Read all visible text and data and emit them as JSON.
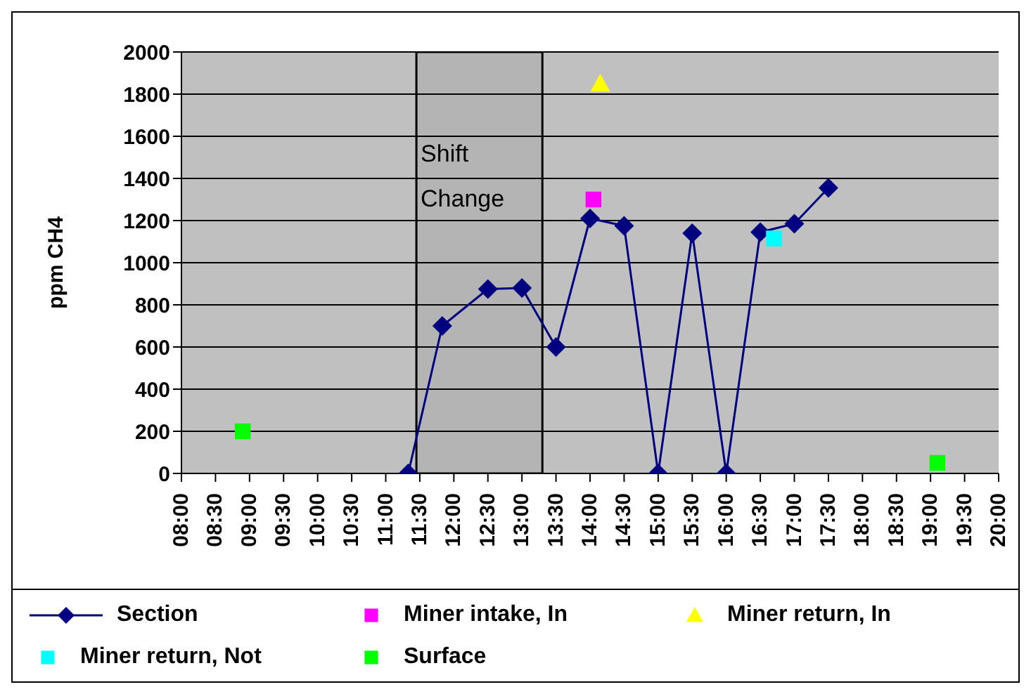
{
  "chart_data": {
    "type": "line",
    "ylabel": "ppm CH4",
    "xlim": [
      8,
      20
    ],
    "ylim": [
      0,
      2000
    ],
    "yticks": [
      0,
      200,
      400,
      600,
      800,
      1000,
      1200,
      1400,
      1600,
      1800,
      2000
    ],
    "xticks": [
      {
        "value": 8,
        "label": "08:00"
      },
      {
        "value": 8.5,
        "label": "08:30"
      },
      {
        "value": 9,
        "label": "09:00"
      },
      {
        "value": 9.5,
        "label": "09:30"
      },
      {
        "value": 10,
        "label": "10:00"
      },
      {
        "value": 10.5,
        "label": "10:30"
      },
      {
        "value": 11,
        "label": "11:00"
      },
      {
        "value": 11.5,
        "label": "11:30"
      },
      {
        "value": 12,
        "label": "12:00"
      },
      {
        "value": 12.5,
        "label": "12:30"
      },
      {
        "value": 13,
        "label": "13:00"
      },
      {
        "value": 13.5,
        "label": "13:30"
      },
      {
        "value": 14,
        "label": "14:00"
      },
      {
        "value": 14.5,
        "label": "14:30"
      },
      {
        "value": 15,
        "label": "15:00"
      },
      {
        "value": 15.5,
        "label": "15:30"
      },
      {
        "value": 16,
        "label": "16:00"
      },
      {
        "value": 16.5,
        "label": "16:30"
      },
      {
        "value": 17,
        "label": "17:00"
      },
      {
        "value": 17.5,
        "label": "17:30"
      },
      {
        "value": 18,
        "label": "18:00"
      },
      {
        "value": 18.5,
        "label": "18:30"
      },
      {
        "value": 19,
        "label": "19:00"
      },
      {
        "value": 19.5,
        "label": "19:30"
      },
      {
        "value": 20,
        "label": "20:00"
      }
    ],
    "grid": "y",
    "legend": "bottom",
    "bands": [
      {
        "axis": "x",
        "from": 11.45,
        "to": 13.3,
        "label": "Shift Change",
        "color": "#000000"
      }
    ],
    "series": [
      {
        "name": "Section",
        "color": "#000080",
        "marker": "diamond",
        "x": [
          11.33,
          11.83,
          12.5,
          13,
          13.5,
          14,
          14.5,
          15,
          15.5,
          16,
          16.5,
          17,
          17.5
        ],
        "values": [
          0,
          700,
          875,
          880,
          600,
          1210,
          1175,
          0,
          1140,
          0,
          1145,
          1185,
          1355
        ]
      },
      {
        "name": "Miner intake, In",
        "type": "scatter",
        "color": "#ff00ff",
        "marker": "square",
        "x": [
          14.05
        ],
        "values": [
          1300
        ]
      },
      {
        "name": "Miner return, In",
        "type": "scatter",
        "color": "#ffff00",
        "marker": "triangle",
        "x": [
          14.15
        ],
        "values": [
          1850
        ]
      },
      {
        "name": "Miner return, Not",
        "type": "scatter",
        "color": "#00ffff",
        "marker": "square",
        "x": [
          16.7
        ],
        "values": [
          1115
        ]
      },
      {
        "name": "Surface",
        "type": "scatter",
        "color": "#00ff00",
        "marker": "square",
        "x": [
          8.9,
          19.1
        ],
        "values": [
          200,
          50
        ]
      }
    ]
  }
}
